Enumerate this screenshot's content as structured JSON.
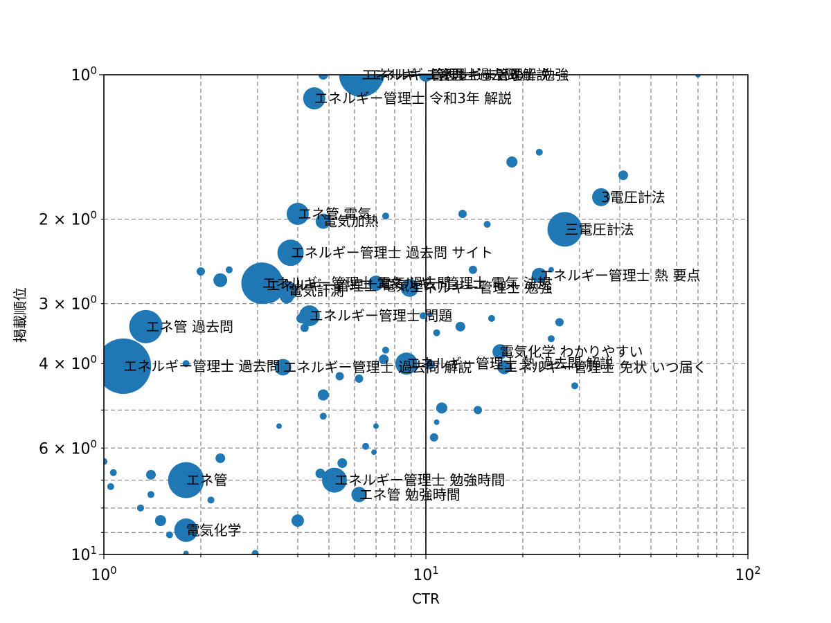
{
  "chart_data": {
    "type": "scatter",
    "xlabel": "CTR",
    "ylabel": "掲載順位",
    "x_scale": "log",
    "y_scale": "log",
    "y_inverted": true,
    "xlim": [
      1,
      100
    ],
    "ylim": [
      10,
      1
    ],
    "grid": true,
    "x_tick_labels": [
      {
        "value": 1,
        "base": "10",
        "exp": "0"
      },
      {
        "value": 10,
        "base": "10",
        "exp": "1"
      },
      {
        "value": 100,
        "base": "10",
        "exp": "2"
      }
    ],
    "y_tick_labels": [
      {
        "value": 1,
        "base": "10",
        "exp": "0"
      },
      {
        "value": 2,
        "base": "2 × 10",
        "exp": "0"
      },
      {
        "value": 3,
        "base": "3 × 10",
        "exp": "0"
      },
      {
        "value": 4,
        "base": "4 × 10",
        "exp": "0"
      },
      {
        "value": 6,
        "base": "6 × 10",
        "exp": "0"
      },
      {
        "value": 10,
        "base": "10",
        "exp": "1"
      }
    ],
    "reference_lines": {
      "x": 10
    },
    "marker_color": "#1f77b4",
    "points": [
      {
        "x": 6.3,
        "y": 1.0,
        "r": 32,
        "label": "エネルギー管理士 過去問 解説"
      },
      {
        "x": 6.6,
        "y": 1.0,
        "r": 24,
        "label": "エネルギー管理士 まとめ"
      },
      {
        "x": 4.5,
        "y": 1.12,
        "r": 16,
        "label": "エネルギー管理士 令和3年 解説"
      },
      {
        "x": 10.0,
        "y": 1.0,
        "r": 10,
        "label": "エネルギー管理士 勉強"
      },
      {
        "x": 4.8,
        "y": 1.0,
        "r": 7,
        "label": ""
      },
      {
        "x": 70.0,
        "y": 1.0,
        "r": 4,
        "label": ""
      },
      {
        "x": 18.5,
        "y": 1.52,
        "r": 8,
        "label": ""
      },
      {
        "x": 22.5,
        "y": 1.45,
        "r": 5,
        "label": ""
      },
      {
        "x": 41.0,
        "y": 1.62,
        "r": 7,
        "label": ""
      },
      {
        "x": 35.0,
        "y": 1.8,
        "r": 13,
        "label": "3電圧計法"
      },
      {
        "x": 27.0,
        "y": 2.1,
        "r": 25,
        "label": "三電圧計法"
      },
      {
        "x": 4.0,
        "y": 1.95,
        "r": 16,
        "label": "エネ管 電気"
      },
      {
        "x": 4.8,
        "y": 2.02,
        "r": 11,
        "label": "電気加熱"
      },
      {
        "x": 13.0,
        "y": 1.95,
        "r": 6,
        "label": ""
      },
      {
        "x": 15.5,
        "y": 2.05,
        "r": 5,
        "label": ""
      },
      {
        "x": 7.5,
        "y": 1.97,
        "r": 5,
        "label": ""
      },
      {
        "x": 3.8,
        "y": 2.35,
        "r": 19,
        "label": "エネルギー管理士 過去問 サイト"
      },
      {
        "x": 22.5,
        "y": 2.62,
        "r": 11,
        "label": "エネルギー管理士 熱 要点"
      },
      {
        "x": 14.0,
        "y": 2.55,
        "r": 6,
        "label": ""
      },
      {
        "x": 24.5,
        "y": 2.55,
        "r": 4,
        "label": ""
      },
      {
        "x": 3.1,
        "y": 2.72,
        "r": 30,
        "label": "エネルギー管理士 電気 過去問"
      },
      {
        "x": 3.2,
        "y": 2.75,
        "r": 26,
        "label": "エネルギー管理士 電気"
      },
      {
        "x": 2.3,
        "y": 2.68,
        "r": 10,
        "label": ""
      },
      {
        "x": 2.0,
        "y": 2.57,
        "r": 6,
        "label": ""
      },
      {
        "x": 2.45,
        "y": 2.55,
        "r": 5,
        "label": ""
      },
      {
        "x": 3.75,
        "y": 2.82,
        "r": 13,
        "label": "電気計測"
      },
      {
        "x": 3.7,
        "y": 2.9,
        "r": 10,
        "label": ""
      },
      {
        "x": 8.9,
        "y": 2.78,
        "r": 13,
        "label": "エネルギー管理士 勉強"
      },
      {
        "x": 7.0,
        "y": 2.72,
        "r": 11,
        "label": "エネルギー管理士 電気 法規"
      },
      {
        "x": 4.35,
        "y": 3.18,
        "r": 15,
        "label": "エネルギー管理士 問題"
      },
      {
        "x": 4.1,
        "y": 3.22,
        "r": 7,
        "label": ""
      },
      {
        "x": 4.2,
        "y": 3.37,
        "r": 6,
        "label": ""
      },
      {
        "x": 9.8,
        "y": 3.18,
        "r": 5,
        "label": ""
      },
      {
        "x": 10.3,
        "y": 3.16,
        "r": 4,
        "label": ""
      },
      {
        "x": 12.8,
        "y": 3.35,
        "r": 7,
        "label": ""
      },
      {
        "x": 16.0,
        "y": 3.22,
        "r": 5,
        "label": ""
      },
      {
        "x": 10.8,
        "y": 3.45,
        "r": 5,
        "label": ""
      },
      {
        "x": 1.35,
        "y": 3.35,
        "r": 24,
        "label": "エネ管 過去問"
      },
      {
        "x": 26.0,
        "y": 3.28,
        "r": 6,
        "label": ""
      },
      {
        "x": 24.5,
        "y": 3.55,
        "r": 5,
        "label": ""
      },
      {
        "x": 17.0,
        "y": 3.78,
        "r": 11,
        "label": "電気化学 わかりやすい"
      },
      {
        "x": 1.15,
        "y": 4.05,
        "r": 40,
        "label": "エネルギー管理士 過去問"
      },
      {
        "x": 3.6,
        "y": 4.07,
        "r": 12,
        "label": "エネルギー管理士 過去問 解説"
      },
      {
        "x": 8.7,
        "y": 4.0,
        "r": 16,
        "label": "エネルギー管理士 熱 過去問 解説"
      },
      {
        "x": 17.5,
        "y": 4.07,
        "r": 10,
        "label": "エネルギー管理士 免状 いつ届く"
      },
      {
        "x": 1.8,
        "y": 4.0,
        "r": 5,
        "label": ""
      },
      {
        "x": 7.4,
        "y": 3.92,
        "r": 7,
        "label": ""
      },
      {
        "x": 7.5,
        "y": 3.75,
        "r": 5,
        "label": ""
      },
      {
        "x": 10.3,
        "y": 4.02,
        "r": 7,
        "label": ""
      },
      {
        "x": 5.4,
        "y": 4.25,
        "r": 6,
        "label": ""
      },
      {
        "x": 6.2,
        "y": 4.3,
        "r": 6,
        "label": ""
      },
      {
        "x": 29.0,
        "y": 4.45,
        "r": 5,
        "label": ""
      },
      {
        "x": 4.8,
        "y": 4.65,
        "r": 8,
        "label": ""
      },
      {
        "x": 11.2,
        "y": 4.95,
        "r": 8,
        "label": ""
      },
      {
        "x": 14.5,
        "y": 5.0,
        "r": 6,
        "label": ""
      },
      {
        "x": 4.8,
        "y": 5.15,
        "r": 5,
        "label": ""
      },
      {
        "x": 3.5,
        "y": 5.4,
        "r": 4,
        "label": ""
      },
      {
        "x": 7.0,
        "y": 5.4,
        "r": 4,
        "label": ""
      },
      {
        "x": 10.8,
        "y": 5.3,
        "r": 4,
        "label": ""
      },
      {
        "x": 10.6,
        "y": 5.7,
        "r": 6,
        "label": ""
      },
      {
        "x": 6.5,
        "y": 5.95,
        "r": 5,
        "label": ""
      },
      {
        "x": 6.9,
        "y": 6.12,
        "r": 4,
        "label": ""
      },
      {
        "x": 2.3,
        "y": 6.3,
        "r": 7,
        "label": ""
      },
      {
        "x": 5.5,
        "y": 6.45,
        "r": 7,
        "label": ""
      },
      {
        "x": 1.0,
        "y": 6.4,
        "r": 5,
        "label": ""
      },
      {
        "x": 1.8,
        "y": 7.0,
        "r": 26,
        "label": "エネ管"
      },
      {
        "x": 5.2,
        "y": 7.0,
        "r": 18,
        "label": "エネルギー管理士 勉強時間"
      },
      {
        "x": 6.2,
        "y": 7.5,
        "r": 11,
        "label": "エネ管 勉強時間"
      },
      {
        "x": 4.7,
        "y": 6.78,
        "r": 7,
        "label": ""
      },
      {
        "x": 1.4,
        "y": 6.82,
        "r": 7,
        "label": ""
      },
      {
        "x": 1.07,
        "y": 6.75,
        "r": 5,
        "label": ""
      },
      {
        "x": 1.05,
        "y": 7.22,
        "r": 5,
        "label": ""
      },
      {
        "x": 1.4,
        "y": 7.5,
        "r": 5,
        "label": ""
      },
      {
        "x": 2.15,
        "y": 7.7,
        "r": 5,
        "label": ""
      },
      {
        "x": 1.3,
        "y": 8.0,
        "r": 5,
        "label": ""
      },
      {
        "x": 1.8,
        "y": 8.9,
        "r": 17,
        "label": "電気化学"
      },
      {
        "x": 4.0,
        "y": 8.5,
        "r": 9,
        "label": ""
      },
      {
        "x": 1.5,
        "y": 8.5,
        "r": 8,
        "label": ""
      },
      {
        "x": 1.6,
        "y": 9.1,
        "r": 5,
        "label": ""
      },
      {
        "x": 2.95,
        "y": 9.95,
        "r": 5,
        "label": ""
      },
      {
        "x": 1.8,
        "y": 9.95,
        "r": 4,
        "label": ""
      }
    ]
  }
}
